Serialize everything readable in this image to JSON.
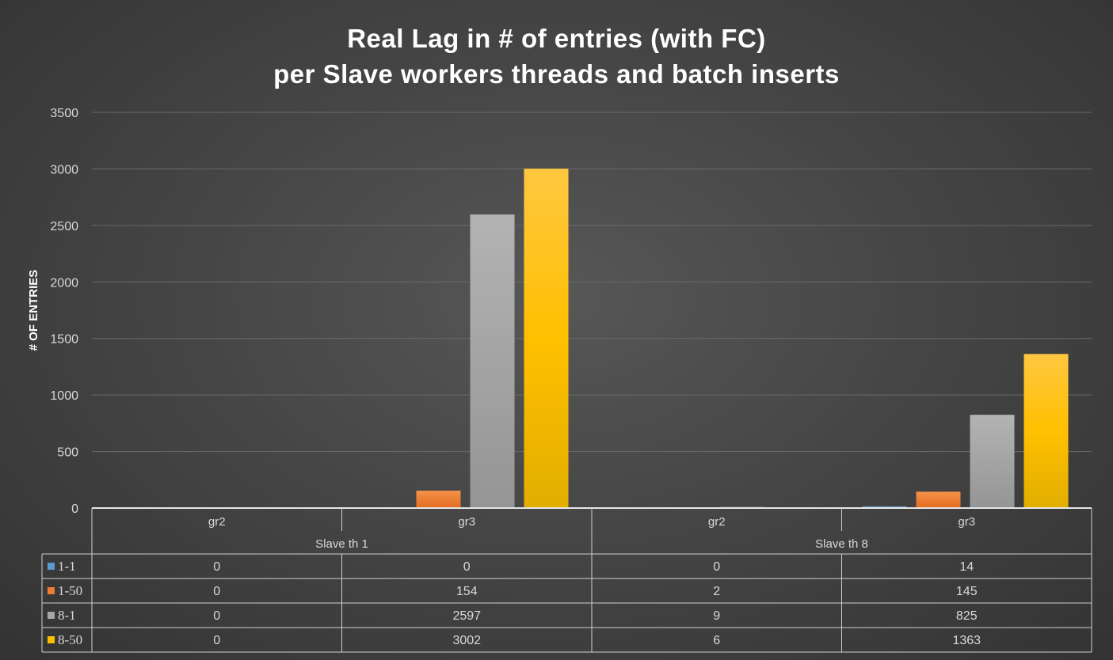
{
  "chart_data": {
    "type": "bar",
    "title_lines": [
      "Real Lag in # of entries (with FC)",
      "per Slave workers threads and batch inserts"
    ],
    "ylabel": "# OF ENTRIES",
    "xlabel": "",
    "ylim": [
      0,
      3500
    ],
    "yticks": [
      0,
      500,
      1000,
      1500,
      2000,
      2500,
      3000,
      3500
    ],
    "grid": true,
    "legend": "data-table",
    "groups": [
      {
        "label": "Slave th 1",
        "categories": [
          "gr2",
          "gr3"
        ]
      },
      {
        "label": "Slave th 8",
        "categories": [
          "gr2",
          "gr3"
        ]
      }
    ],
    "categories": [
      "gr2",
      "gr3",
      "gr2",
      "gr3"
    ],
    "series": [
      {
        "name": "1-1",
        "color": "#5b9bd5",
        "values": [
          0,
          0,
          0,
          14
        ]
      },
      {
        "name": "1-50",
        "color": "#ed7d31",
        "values": [
          0,
          154,
          2,
          145
        ]
      },
      {
        "name": "8-1",
        "color": "#a5a5a5",
        "values": [
          0,
          2597,
          9,
          825
        ]
      },
      {
        "name": "8-50",
        "color": "#ffc000",
        "values": [
          0,
          3002,
          6,
          1363
        ]
      }
    ]
  }
}
